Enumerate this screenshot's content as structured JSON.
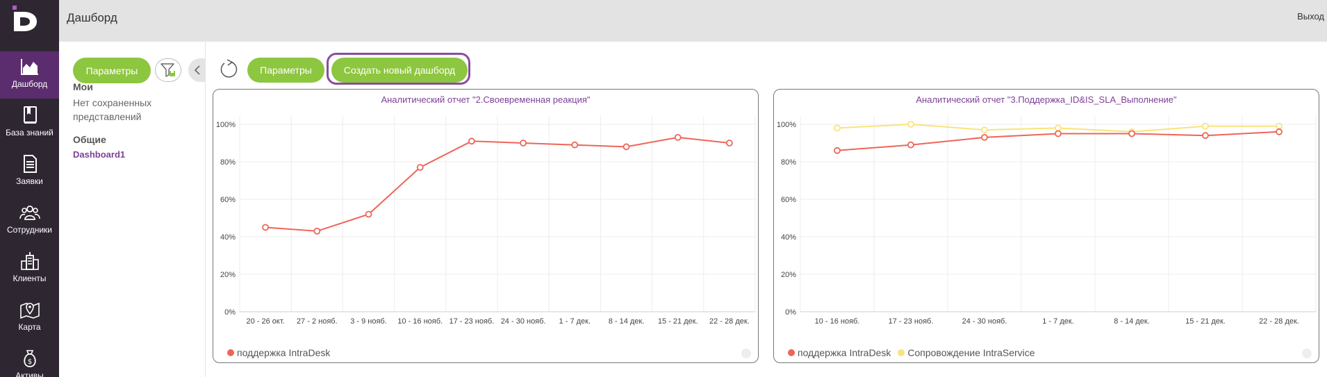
{
  "header": {
    "title": "Дашборд",
    "logout": "Выход"
  },
  "nav": {
    "items": [
      {
        "label": "Дашборд",
        "icon": "chart-area-icon",
        "active": true
      },
      {
        "label": "База знаний",
        "icon": "book-icon"
      },
      {
        "label": "Заявки",
        "icon": "document-icon"
      },
      {
        "label": "Сотрудники",
        "icon": "users-icon"
      },
      {
        "label": "Клиенты",
        "icon": "buildings-icon"
      },
      {
        "label": "Карта",
        "icon": "map-pin-icon"
      },
      {
        "label": "Активы",
        "icon": "money-bag-icon"
      }
    ]
  },
  "side": {
    "params_label": "Параметры",
    "my_heading": "Мои",
    "no_saved": "Нет сохраненных представлений",
    "common_heading": "Общие",
    "dashboard_link": "Dashboard1"
  },
  "toolbar": {
    "params_label": "Параметры",
    "create_label": "Создать новый дашборд"
  },
  "colors": {
    "accent": "#8dc63f",
    "brand": "#7b3f98",
    "series_red": "#ef6458",
    "series_yellow": "#f9e37a"
  },
  "chart_data": [
    {
      "type": "line",
      "title": "Аналитический отчет \"2.Своевременная реакция\"",
      "categories": [
        "20 - 26 окт.",
        "27 - 2 нояб.",
        "3 - 9 нояб.",
        "10 - 16 нояб.",
        "17 - 23 нояб.",
        "24 - 30 нояб.",
        "1 - 7 дек.",
        "8 - 14 дек.",
        "15 - 21 дек.",
        "22 - 28 дек."
      ],
      "y_ticks": [
        "0%",
        "20%",
        "40%",
        "60%",
        "80%",
        "100%"
      ],
      "ylim": [
        0,
        100
      ],
      "series": [
        {
          "name": "поддержка IntraDesk",
          "color": "#ef6458",
          "values": [
            45,
            43,
            52,
            77,
            91,
            90,
            89,
            88,
            93,
            90
          ]
        }
      ]
    },
    {
      "type": "line",
      "title": "Аналитический отчет \"3.Поддержка_ID&IS_SLA_Выполнение\"",
      "categories": [
        "10 - 16 нояб.",
        "17 - 23 нояб.",
        "24 - 30 нояб.",
        "1 - 7 дек.",
        "8 - 14 дек.",
        "15 - 21 дек.",
        "22 - 28 дек."
      ],
      "y_ticks": [
        "0%",
        "20%",
        "40%",
        "60%",
        "80%",
        "100%"
      ],
      "ylim": [
        0,
        100
      ],
      "series": [
        {
          "name": "поддержка IntraDesk",
          "color": "#ef6458",
          "values": [
            86,
            89,
            93,
            95,
            95,
            94,
            96
          ]
        },
        {
          "name": "Сопровождение IntraService",
          "color": "#f9e37a",
          "values": [
            98,
            100,
            97,
            98,
            96,
            99,
            99
          ]
        }
      ]
    }
  ]
}
